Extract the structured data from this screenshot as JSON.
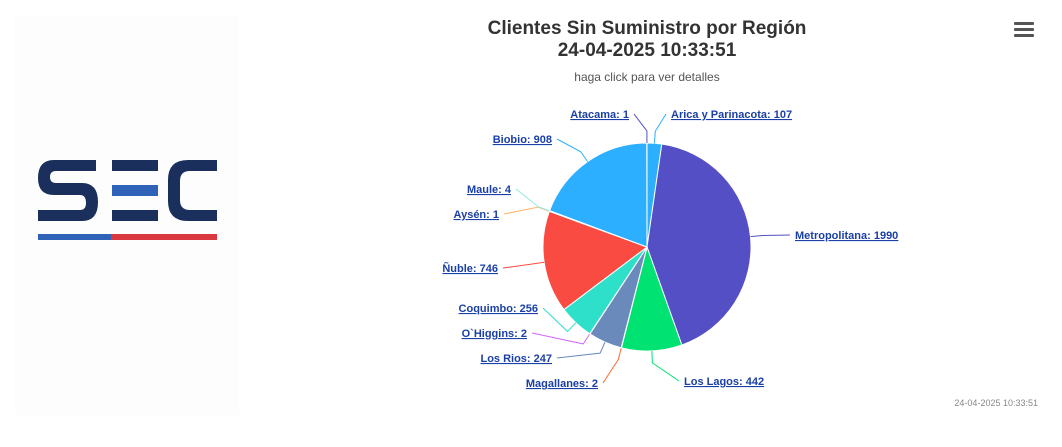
{
  "logo": {
    "text": "SEC",
    "colors": {
      "dark": "#1b2f5c",
      "blue": "#2f63b8",
      "red": "#d9383e"
    }
  },
  "header": {
    "title_line1": "Clientes Sin Suministro por Región",
    "title_line2": "24-04-2025 10:33:51",
    "subtitle": "haga click para ver detalles"
  },
  "menu": {
    "icon": "hamburger-menu-icon"
  },
  "credits": "24-04-2025 10:33:51",
  "chart_data": {
    "type": "pie",
    "title": "Clientes Sin Suministro por Región",
    "subtitle": "haga click para ver detalles",
    "series": [
      {
        "name": "Arica y Parinacota",
        "value": 107,
        "label": "Arica y Parinacota: 107",
        "color": "#2caffe"
      },
      {
        "name": "Metropolitana",
        "value": 1990,
        "label": "Metropolitana: 1990",
        "color": "#544fc5"
      },
      {
        "name": "Los Lagos",
        "value": 442,
        "label": "Los Lagos: 442",
        "color": "#00e272"
      },
      {
        "name": "Magallanes",
        "value": 2,
        "label": "Magallanes: 2",
        "color": "#fe6a35"
      },
      {
        "name": "Los Rios",
        "value": 247,
        "label": "Los Rios: 247",
        "color": "#6b8abc"
      },
      {
        "name": "O`Higgins",
        "value": 2,
        "label": "O`Higgins: 2",
        "color": "#d568fb"
      },
      {
        "name": "Coquimbo",
        "value": 256,
        "label": "Coquimbo: 256",
        "color": "#2ee0ca"
      },
      {
        "name": "Ñuble",
        "value": 746,
        "label": "Ñuble: 746",
        "color": "#fa4b42"
      },
      {
        "name": "Aysén",
        "value": 1,
        "label": "Aysén: 1",
        "color": "#feb56a"
      },
      {
        "name": "Maule",
        "value": 4,
        "label": "Maule: 4",
        "color": "#91e8e1"
      },
      {
        "name": "Biobio",
        "value": 908,
        "label": "Biobio: 908",
        "color": "#2caffe"
      },
      {
        "name": "Atacama",
        "value": 1,
        "label": "Atacama: 1",
        "color": "#544fc5"
      }
    ]
  }
}
